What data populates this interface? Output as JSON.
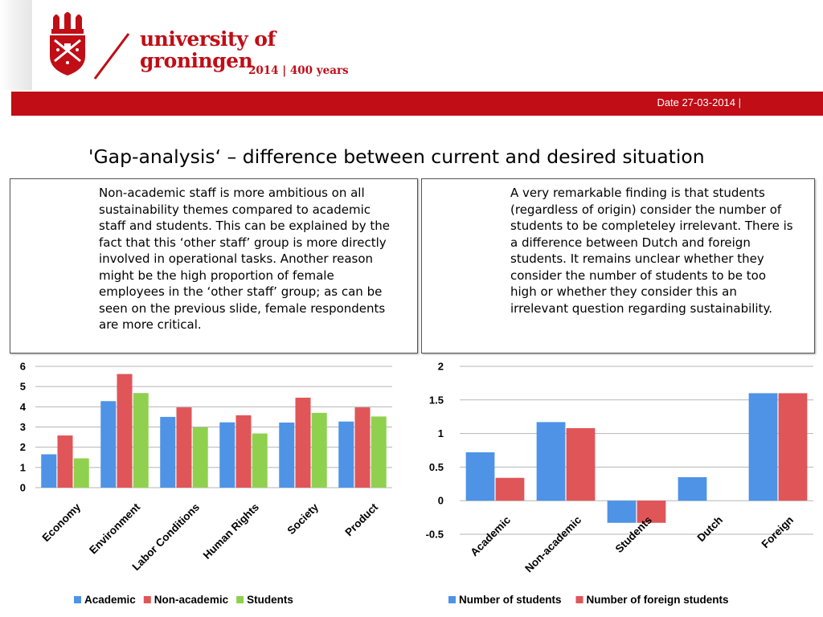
{
  "header": {
    "logo_line1": "university of",
    "logo_line2": "groningen",
    "logo_tagline": "2014 | 400 years",
    "date": "Date 27-03-2014 |",
    "brand_color": "#c00d16"
  },
  "title": "'Gap-analysis‘ – difference between current and desired situation",
  "boxes": {
    "left": "Non-academic staff is more ambitious on all sustainability themes compared to academic staff and students. This can be explained by the fact that this ‘other staff’ group is more directly involved in operational tasks. Another reason might be the high proportion of female employees in the ‘other staff’ group; as can be seen on the previous slide, female respondents are more critical.",
    "right": "A very remarkable finding is that students (regardless of origin) consider the number of students to be completeley irrelevant. There is a difference between Dutch and foreign students. It remains unclear whether they consider the number of students to be too high or whether they consider this an irrelevant question regarding sustainability."
  },
  "chart_data": [
    {
      "type": "bar",
      "categories": [
        "Economy",
        "Environment",
        "Labor Conditions",
        "Human Rights",
        "Society",
        "Product"
      ],
      "series": [
        {
          "name": "Academic",
          "color": "#4e93e6",
          "values": [
            1.65,
            4.28,
            3.5,
            3.23,
            3.22,
            3.27
          ]
        },
        {
          "name": "Non-academic",
          "color": "#e05558",
          "values": [
            2.58,
            5.62,
            3.97,
            3.58,
            4.45,
            3.97
          ]
        },
        {
          "name": "Students",
          "color": "#8fd14f",
          "values": [
            1.45,
            4.68,
            2.98,
            2.68,
            3.7,
            3.52
          ]
        }
      ],
      "yticks": [
        "0",
        "1",
        "2",
        "3",
        "4",
        "5",
        "6"
      ],
      "ylim": [
        0,
        6
      ],
      "grid": true,
      "legend": "bottom"
    },
    {
      "type": "bar",
      "categories": [
        "Academic",
        "Non-academic",
        "Students",
        "Dutch",
        "Foreign"
      ],
      "series": [
        {
          "name": "Number of students",
          "color": "#4e93e6",
          "values": [
            0.72,
            1.17,
            -0.33,
            0.35,
            1.6
          ]
        },
        {
          "name": "Number of foreign students",
          "color": "#e05558",
          "values": [
            0.34,
            1.08,
            -0.33,
            null,
            1.6
          ]
        }
      ],
      "yticks": [
        "-0.5",
        "0",
        "0.5",
        "1",
        "1.5",
        "2"
      ],
      "ylim": [
        -0.5,
        2
      ],
      "grid": true,
      "legend": "bottom"
    }
  ]
}
